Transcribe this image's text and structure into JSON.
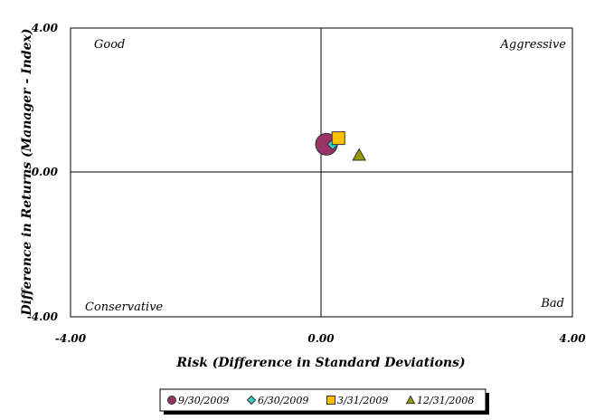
{
  "chart_data": {
    "type": "scatter",
    "title": "",
    "xlabel": "Risk (Difference in Standard Deviations)",
    "ylabel": "Difference in Returns (Manager - Index)",
    "xlim": [
      -4,
      4
    ],
    "ylim": [
      -4,
      4
    ],
    "x_ticks": [
      "-4.00",
      "0.00",
      "4.00"
    ],
    "y_ticks": [
      "4.00",
      "0.00",
      "-4.00"
    ],
    "grid": false,
    "quadrant_labels": {
      "top_left": "Good",
      "top_right": "Aggressive",
      "bottom_left": "Conservative",
      "bottom_right": "Bad"
    },
    "legend_position": "bottom",
    "series": [
      {
        "name": "9/30/2009",
        "marker": "circle",
        "color": "#993366",
        "x": 0.08,
        "y": 0.78
      },
      {
        "name": "6/30/2009",
        "marker": "diamond",
        "color": "#33CCCC",
        "x": 0.18,
        "y": 0.78
      },
      {
        "name": "3/31/2009",
        "marker": "square",
        "color": "#FFC000",
        "x": 0.27,
        "y": 0.95
      },
      {
        "name": "12/31/2008",
        "marker": "triangle",
        "color": "#999900",
        "x": 0.6,
        "y": 0.48
      }
    ]
  }
}
